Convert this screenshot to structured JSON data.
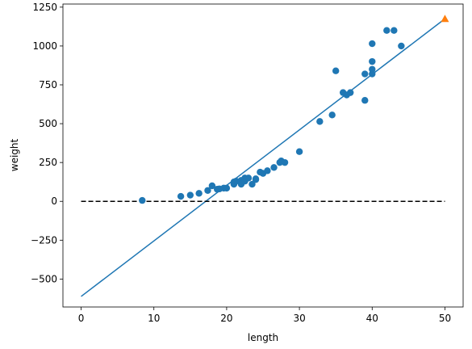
{
  "chart_data": {
    "type": "scatter",
    "xlabel": "length",
    "ylabel": "weight",
    "xlim": [
      -2.5,
      52.5
    ],
    "ylim": [
      -680,
      1270
    ],
    "x_ticks": [
      0,
      10,
      20,
      30,
      40,
      50
    ],
    "y_ticks": [
      -500,
      -250,
      0,
      250,
      500,
      750,
      1000,
      1250
    ],
    "grid": false,
    "colors": {
      "points": "#1f77b4",
      "fit_line": "#1f77b4",
      "zero_line": "#000000",
      "highlight": "#ff7f0e"
    },
    "points": [
      [
        8.4,
        5.9
      ],
      [
        13.7,
        32.0
      ],
      [
        15.0,
        40.0
      ],
      [
        16.2,
        51.5
      ],
      [
        17.4,
        70.0
      ],
      [
        18.0,
        100.0
      ],
      [
        18.7,
        78.0
      ],
      [
        19.0,
        80.0
      ],
      [
        19.6,
        85.0
      ],
      [
        20.0,
        85.0
      ],
      [
        21.0,
        110.0
      ],
      [
        21.0,
        115.0
      ],
      [
        21.0,
        125.0
      ],
      [
        21.3,
        130.0
      ],
      [
        22.0,
        120.0
      ],
      [
        22.0,
        120.0
      ],
      [
        22.0,
        130.0
      ],
      [
        22.0,
        135.0
      ],
      [
        22.0,
        110.0
      ],
      [
        22.5,
        130.0
      ],
      [
        22.5,
        150.0
      ],
      [
        22.7,
        145.0
      ],
      [
        23.0,
        150.0
      ],
      [
        23.5,
        110.0
      ],
      [
        24.0,
        145.0
      ],
      [
        24.0,
        140.0
      ],
      [
        24.6,
        188.0
      ],
      [
        25.0,
        180.0
      ],
      [
        25.6,
        197.0
      ],
      [
        26.5,
        218.0
      ],
      [
        27.3,
        250.0
      ],
      [
        27.5,
        260.0
      ],
      [
        28.0,
        250.0
      ],
      [
        30.0,
        320.0
      ],
      [
        32.8,
        514.0
      ],
      [
        34.5,
        556.0
      ],
      [
        35.0,
        840.0
      ],
      [
        36.5,
        685.0
      ],
      [
        36.0,
        700.0
      ],
      [
        37.0,
        700.0
      ],
      [
        39.0,
        650.0
      ],
      [
        39.0,
        820.0
      ],
      [
        40.0,
        850.0
      ],
      [
        40.0,
        900.0
      ],
      [
        40.0,
        1015.0
      ],
      [
        40.0,
        820.0
      ],
      [
        42.0,
        1100.0
      ],
      [
        43.0,
        1100.0
      ],
      [
        44.0,
        1000.0
      ]
    ],
    "fit_line": {
      "x": [
        0,
        50
      ],
      "y": [
        -612,
        1175
      ]
    },
    "zero_line": {
      "x": [
        0,
        50
      ],
      "y": [
        0,
        0
      ]
    },
    "highlight_point": {
      "x": 50,
      "y": 1175,
      "marker": "triangle"
    }
  }
}
